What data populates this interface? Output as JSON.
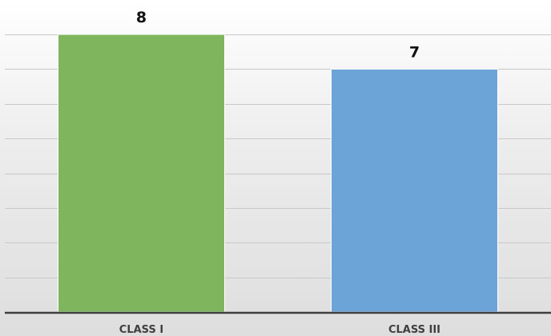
{
  "chart_data": {
    "type": "bar",
    "categories": [
      "CLASS I",
      "CLASS III"
    ],
    "values": [
      8,
      7
    ],
    "colors": [
      "#7fb55d",
      "#6ca4d8"
    ],
    "title": "",
    "xlabel": "",
    "ylabel": "",
    "ylim": [
      0,
      8
    ],
    "grid": true,
    "grid_step": 1,
    "data_labels": [
      "8",
      "7"
    ]
  }
}
